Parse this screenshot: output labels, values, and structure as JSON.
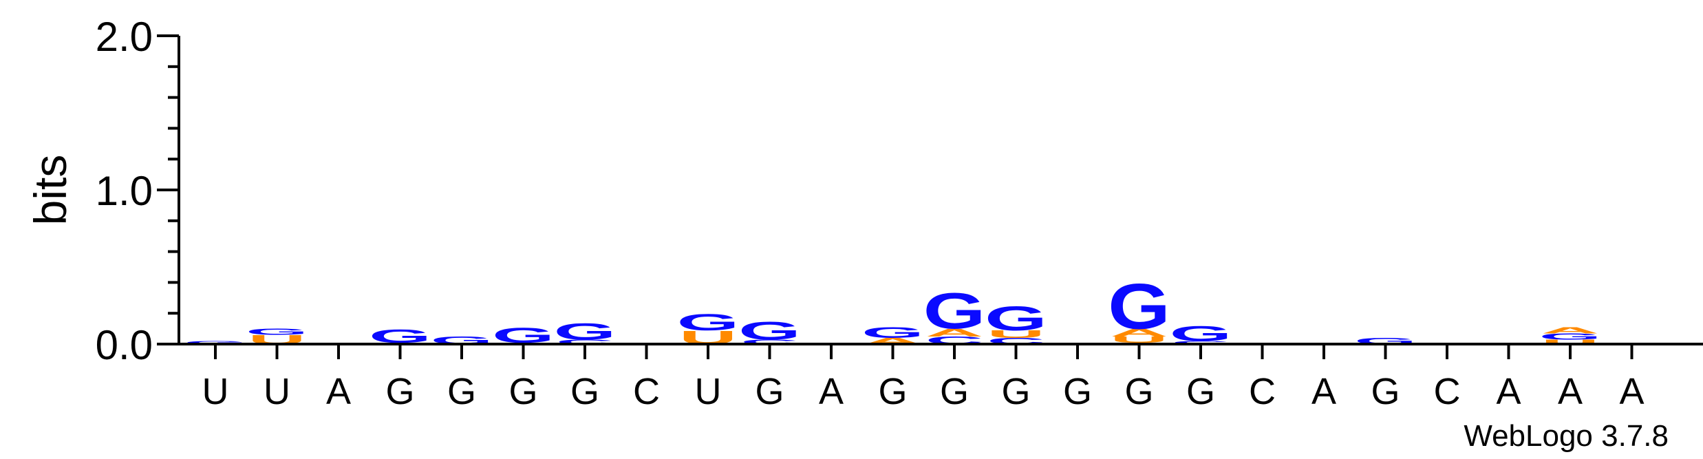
{
  "chart_data": {
    "type": "sequence-logo",
    "title": "",
    "xlabel": "",
    "ylabel": "bits",
    "ylim": [
      0,
      2
    ],
    "yticks": [
      {
        "value": 0,
        "label": "0.0"
      },
      {
        "value": 1,
        "label": "1.0"
      },
      {
        "value": 2,
        "label": "2.0"
      }
    ],
    "credit": "WebLogo 3.7.8",
    "colors": {
      "G": "#0a0aff",
      "C": "#0a0aff",
      "U": "#ff8a00",
      "A": "#ff8a00"
    },
    "positions": [
      {
        "label": "U",
        "stack": [
          {
            "letter": "G",
            "bits": 0.02
          }
        ]
      },
      {
        "label": "U",
        "stack": [
          {
            "letter": "U",
            "bits": 0.06
          },
          {
            "letter": "G",
            "bits": 0.04
          }
        ]
      },
      {
        "label": "A",
        "stack": []
      },
      {
        "label": "G",
        "stack": [
          {
            "letter": "A",
            "bits": 0.01
          },
          {
            "letter": "G",
            "bits": 0.09
          }
        ]
      },
      {
        "label": "G",
        "stack": [
          {
            "letter": "G",
            "bits": 0.05
          }
        ]
      },
      {
        "label": "G",
        "stack": [
          {
            "letter": "A",
            "bits": 0.01
          },
          {
            "letter": "G",
            "bits": 0.1
          }
        ]
      },
      {
        "label": "G",
        "stack": [
          {
            "letter": "C",
            "bits": 0.03
          },
          {
            "letter": "G",
            "bits": 0.11
          }
        ]
      },
      {
        "label": "C",
        "stack": []
      },
      {
        "label": "U",
        "stack": [
          {
            "letter": "U",
            "bits": 0.09
          },
          {
            "letter": "G",
            "bits": 0.11
          }
        ]
      },
      {
        "label": "G",
        "stack": [
          {
            "letter": "C",
            "bits": 0.03
          },
          {
            "letter": "G",
            "bits": 0.12
          }
        ]
      },
      {
        "label": "A",
        "stack": []
      },
      {
        "label": "G",
        "stack": [
          {
            "letter": "A",
            "bits": 0.04
          },
          {
            "letter": "G",
            "bits": 0.07
          }
        ]
      },
      {
        "label": "G",
        "stack": [
          {
            "letter": "C",
            "bits": 0.05
          },
          {
            "letter": "A",
            "bits": 0.05
          },
          {
            "letter": "G",
            "bits": 0.24
          }
        ]
      },
      {
        "label": "G",
        "stack": [
          {
            "letter": "C",
            "bits": 0.04
          },
          {
            "letter": "U",
            "bits": 0.05
          },
          {
            "letter": "G",
            "bits": 0.16
          }
        ]
      },
      {
        "label": "G",
        "stack": [
          {
            "letter": "C",
            "bits": 0.01
          }
        ]
      },
      {
        "label": "G",
        "stack": [
          {
            "letter": "C",
            "bits": 0.01
          },
          {
            "letter": "U",
            "bits": 0.04
          },
          {
            "letter": "A",
            "bits": 0.05
          },
          {
            "letter": "G",
            "bits": 0.3
          }
        ]
      },
      {
        "label": "G",
        "stack": [
          {
            "letter": "C",
            "bits": 0.02
          },
          {
            "letter": "G",
            "bits": 0.1
          }
        ]
      },
      {
        "label": "C",
        "stack": [
          {
            "letter": "C",
            "bits": 0.01
          }
        ]
      },
      {
        "label": "A",
        "stack": [
          {
            "letter": "C",
            "bits": 0.01
          }
        ]
      },
      {
        "label": "G",
        "stack": [
          {
            "letter": "G",
            "bits": 0.04
          }
        ]
      },
      {
        "label": "C",
        "stack": []
      },
      {
        "label": "A",
        "stack": []
      },
      {
        "label": "A",
        "stack": [
          {
            "letter": "U",
            "bits": 0.03
          },
          {
            "letter": "G",
            "bits": 0.04
          },
          {
            "letter": "A",
            "bits": 0.04
          }
        ]
      },
      {
        "label": "A",
        "stack": [
          {
            "letter": "U",
            "bits": 0.01
          }
        ]
      }
    ]
  }
}
